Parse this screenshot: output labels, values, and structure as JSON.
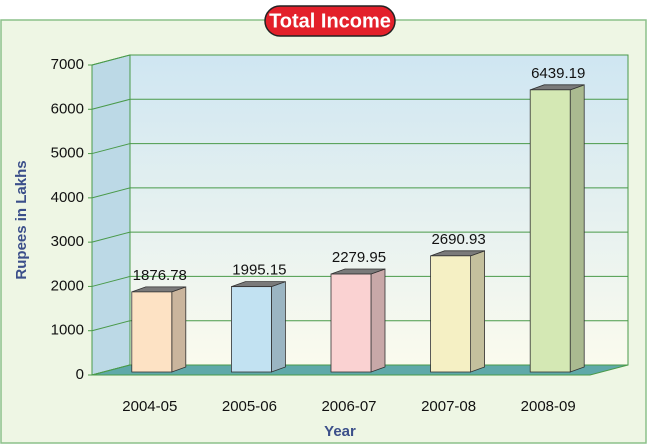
{
  "chart_data": {
    "type": "bar3d",
    "title": "Total Income",
    "y_label": "Rupees in Lakhs",
    "x_label": "Year",
    "categories": [
      "2004-05",
      "2005-06",
      "2006-07",
      "2007-08",
      "2008-09"
    ],
    "values": [
      1876.78,
      1995.15,
      2279.95,
      2690.93,
      6439.19
    ],
    "colors": [
      "#fde2c4",
      "#c2e2f2",
      "#fad2d2",
      "#f5f0c4",
      "#d4e8b4"
    ],
    "ylim": [
      0,
      7000
    ],
    "yticks": [
      0,
      1000,
      2000,
      3000,
      4000,
      5000,
      6000,
      7000
    ],
    "grid": true
  }
}
